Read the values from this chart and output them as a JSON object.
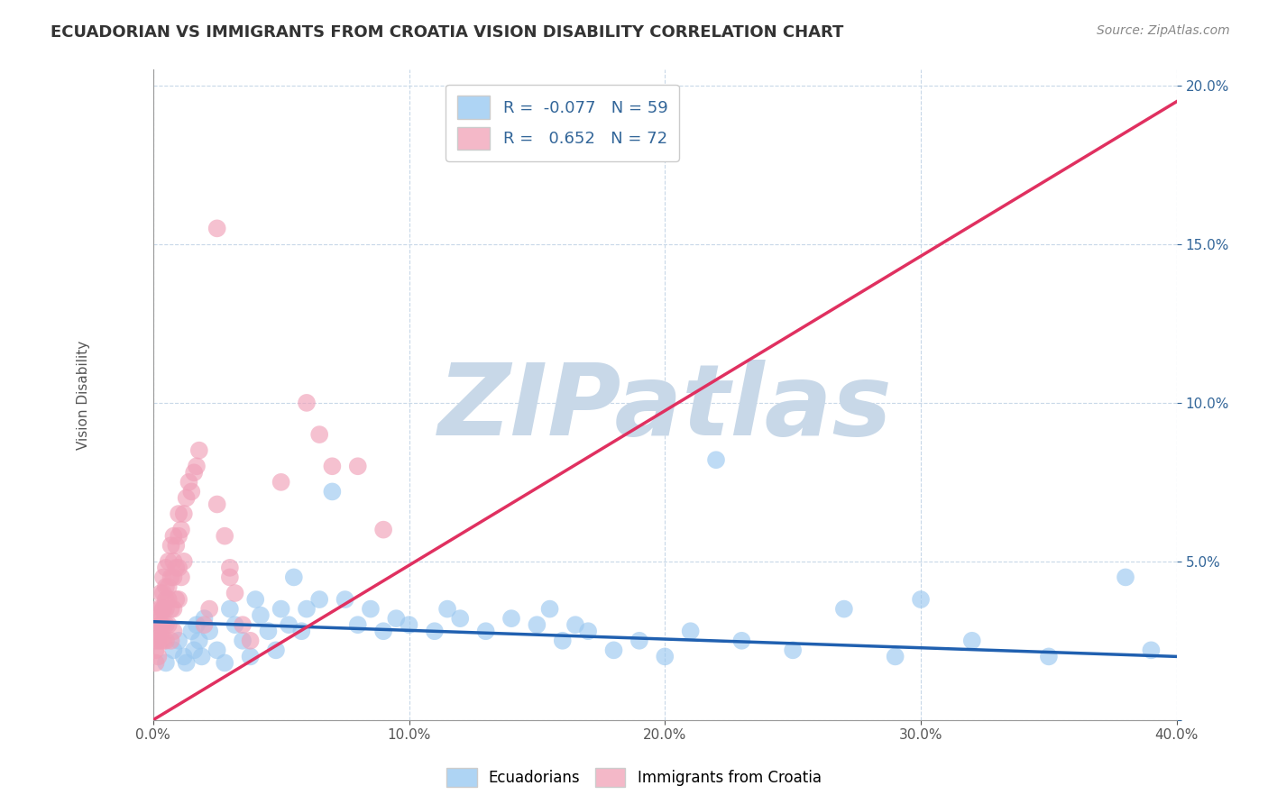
{
  "title": "ECUADORIAN VS IMMIGRANTS FROM CROATIA VISION DISABILITY CORRELATION CHART",
  "source": "Source: ZipAtlas.com",
  "ylabel": "Vision Disability",
  "xlim": [
    0.0,
    0.4
  ],
  "ylim": [
    0.0,
    0.205
  ],
  "xtick_labels": [
    "0.0%",
    "10.0%",
    "20.0%",
    "30.0%",
    "40.0%"
  ],
  "xtick_values": [
    0.0,
    0.1,
    0.2,
    0.3,
    0.4
  ],
  "ytick_labels": [
    "",
    "5.0%",
    "10.0%",
    "15.0%",
    "20.0%"
  ],
  "ytick_values": [
    0.0,
    0.05,
    0.1,
    0.15,
    0.2
  ],
  "blue_scatter_x": [
    0.005,
    0.008,
    0.01,
    0.012,
    0.013,
    0.015,
    0.016,
    0.017,
    0.018,
    0.019,
    0.02,
    0.022,
    0.025,
    0.028,
    0.03,
    0.032,
    0.035,
    0.038,
    0.04,
    0.042,
    0.045,
    0.048,
    0.05,
    0.053,
    0.055,
    0.058,
    0.06,
    0.065,
    0.07,
    0.075,
    0.08,
    0.085,
    0.09,
    0.095,
    0.1,
    0.11,
    0.115,
    0.12,
    0.13,
    0.14,
    0.15,
    0.155,
    0.16,
    0.165,
    0.17,
    0.18,
    0.19,
    0.2,
    0.21,
    0.22,
    0.23,
    0.25,
    0.27,
    0.29,
    0.3,
    0.32,
    0.35,
    0.38,
    0.39
  ],
  "blue_scatter_y": [
    0.018,
    0.022,
    0.025,
    0.02,
    0.018,
    0.028,
    0.022,
    0.03,
    0.025,
    0.02,
    0.032,
    0.028,
    0.022,
    0.018,
    0.035,
    0.03,
    0.025,
    0.02,
    0.038,
    0.033,
    0.028,
    0.022,
    0.035,
    0.03,
    0.045,
    0.028,
    0.035,
    0.038,
    0.072,
    0.038,
    0.03,
    0.035,
    0.028,
    0.032,
    0.03,
    0.028,
    0.035,
    0.032,
    0.028,
    0.032,
    0.03,
    0.035,
    0.025,
    0.03,
    0.028,
    0.022,
    0.025,
    0.02,
    0.028,
    0.082,
    0.025,
    0.022,
    0.035,
    0.02,
    0.038,
    0.025,
    0.02,
    0.045,
    0.022
  ],
  "blue_trend_x0": 0.0,
  "blue_trend_y0": 0.031,
  "blue_trend_x1": 0.4,
  "blue_trend_y1": 0.02,
  "pink_scatter_x": [
    0.001,
    0.001,
    0.001,
    0.001,
    0.002,
    0.002,
    0.002,
    0.002,
    0.002,
    0.003,
    0.003,
    0.003,
    0.003,
    0.003,
    0.004,
    0.004,
    0.004,
    0.004,
    0.004,
    0.004,
    0.005,
    0.005,
    0.005,
    0.005,
    0.005,
    0.005,
    0.006,
    0.006,
    0.006,
    0.006,
    0.007,
    0.007,
    0.007,
    0.007,
    0.008,
    0.008,
    0.008,
    0.008,
    0.008,
    0.009,
    0.009,
    0.009,
    0.01,
    0.01,
    0.01,
    0.01,
    0.011,
    0.011,
    0.012,
    0.012,
    0.013,
    0.014,
    0.015,
    0.016,
    0.017,
    0.018,
    0.02,
    0.022,
    0.025,
    0.028,
    0.03,
    0.032,
    0.035,
    0.038,
    0.05,
    0.06,
    0.065,
    0.07,
    0.08,
    0.09,
    0.025,
    0.03
  ],
  "pink_scatter_y": [
    0.025,
    0.03,
    0.022,
    0.018,
    0.028,
    0.032,
    0.025,
    0.02,
    0.035,
    0.03,
    0.025,
    0.035,
    0.04,
    0.03,
    0.035,
    0.04,
    0.045,
    0.03,
    0.025,
    0.035,
    0.038,
    0.042,
    0.048,
    0.035,
    0.03,
    0.025,
    0.042,
    0.05,
    0.038,
    0.03,
    0.045,
    0.055,
    0.035,
    0.025,
    0.05,
    0.058,
    0.045,
    0.035,
    0.028,
    0.055,
    0.048,
    0.038,
    0.058,
    0.065,
    0.048,
    0.038,
    0.06,
    0.045,
    0.065,
    0.05,
    0.07,
    0.075,
    0.072,
    0.078,
    0.08,
    0.085,
    0.03,
    0.035,
    0.068,
    0.058,
    0.048,
    0.04,
    0.03,
    0.025,
    0.075,
    0.1,
    0.09,
    0.08,
    0.08,
    0.06,
    0.155,
    0.045
  ],
  "pink_trend_x0": 0.0,
  "pink_trend_y0": 0.0,
  "pink_trend_x1": 0.4,
  "pink_trend_y1": 0.195,
  "watermark": "ZIPatlas",
  "watermark_color": "#C8D8E8",
  "background_color": "#FFFFFF",
  "grid_color": "#C8D8E8",
  "title_color": "#333333",
  "axis_color": "#336699",
  "blue_marker": "#9BC8F0",
  "blue_trend": "#2060B0",
  "pink_marker": "#F0A0B8",
  "pink_trend": "#E0406080"
}
